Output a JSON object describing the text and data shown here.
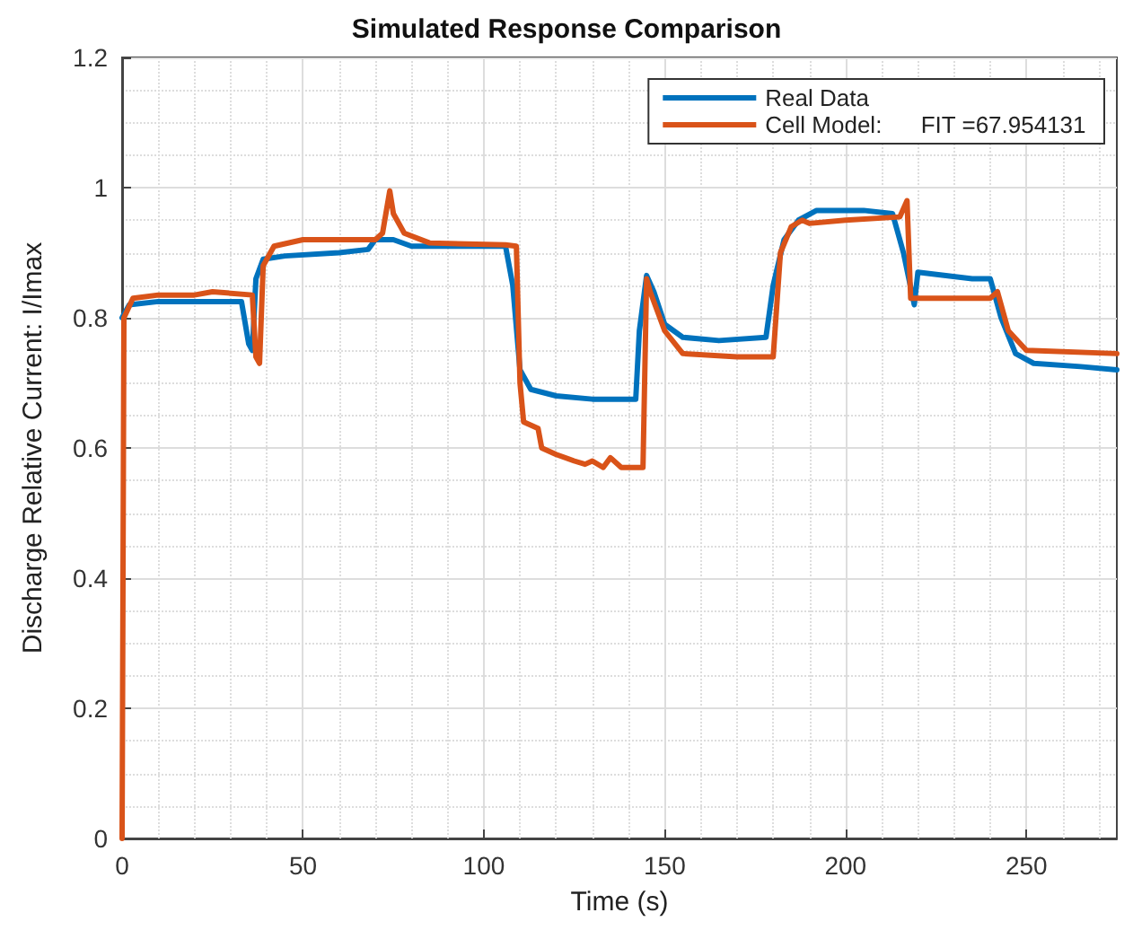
{
  "chart_data": {
    "type": "line",
    "title": "Simulated Response Comparison",
    "xlabel": "Time (s)",
    "ylabel": "Discharge Relative Current: I/Imax",
    "xlim": [
      0,
      275
    ],
    "xticks": [
      0,
      50,
      100,
      150,
      200,
      250
    ],
    "ylim": [
      0,
      1.2
    ],
    "yticks": [
      0,
      0.2,
      0.4,
      0.6,
      0.8,
      1,
      1.2
    ],
    "grid": true,
    "legend": "top right",
    "marker": "none",
    "line_style": "solid",
    "series": [
      {
        "name": "Real Data",
        "color": "#0072bd",
        "x": [
          0,
          2,
          10,
          20,
          33,
          35,
          36,
          37,
          39,
          45,
          60,
          68,
          70,
          72,
          75,
          80,
          90,
          106,
          108,
          110,
          113,
          120,
          130,
          142,
          143,
          145,
          147,
          150,
          155,
          165,
          178,
          180,
          183,
          187,
          192,
          205,
          213,
          216,
          219,
          220,
          235,
          240,
          243,
          247,
          252,
          265,
          275
        ],
        "values": [
          0.8,
          0.82,
          0.825,
          0.825,
          0.825,
          0.76,
          0.75,
          0.86,
          0.89,
          0.895,
          0.9,
          0.905,
          0.92,
          0.92,
          0.92,
          0.91,
          0.91,
          0.91,
          0.85,
          0.72,
          0.69,
          0.68,
          0.675,
          0.675,
          0.78,
          0.865,
          0.84,
          0.79,
          0.77,
          0.765,
          0.77,
          0.85,
          0.92,
          0.95,
          0.965,
          0.965,
          0.96,
          0.9,
          0.82,
          0.87,
          0.86,
          0.86,
          0.8,
          0.745,
          0.73,
          0.725,
          0.72
        ]
      },
      {
        "name": "Cell Model:      FIT =67.954131",
        "color": "#d95319",
        "x": [
          0,
          0.5,
          3,
          10,
          20,
          25,
          36,
          37,
          38,
          39,
          42,
          50,
          70,
          72,
          74,
          75,
          78,
          85,
          106,
          109,
          110,
          111,
          115,
          116,
          120,
          125,
          128,
          130,
          133,
          135,
          138,
          144,
          145,
          146,
          150,
          155,
          170,
          180,
          182,
          185,
          188,
          190,
          200,
          215,
          217,
          218,
          222,
          240,
          242,
          245,
          250,
          275
        ],
        "values": [
          0,
          0.8,
          0.83,
          0.835,
          0.835,
          0.84,
          0.835,
          0.74,
          0.73,
          0.88,
          0.91,
          0.92,
          0.92,
          0.93,
          0.995,
          0.96,
          0.93,
          0.915,
          0.912,
          0.91,
          0.7,
          0.64,
          0.63,
          0.6,
          0.59,
          0.58,
          0.575,
          0.58,
          0.57,
          0.585,
          0.57,
          0.57,
          0.86,
          0.84,
          0.78,
          0.745,
          0.74,
          0.74,
          0.9,
          0.94,
          0.95,
          0.945,
          0.95,
          0.955,
          0.98,
          0.83,
          0.83,
          0.83,
          0.84,
          0.78,
          0.75,
          0.745
        ]
      }
    ]
  }
}
